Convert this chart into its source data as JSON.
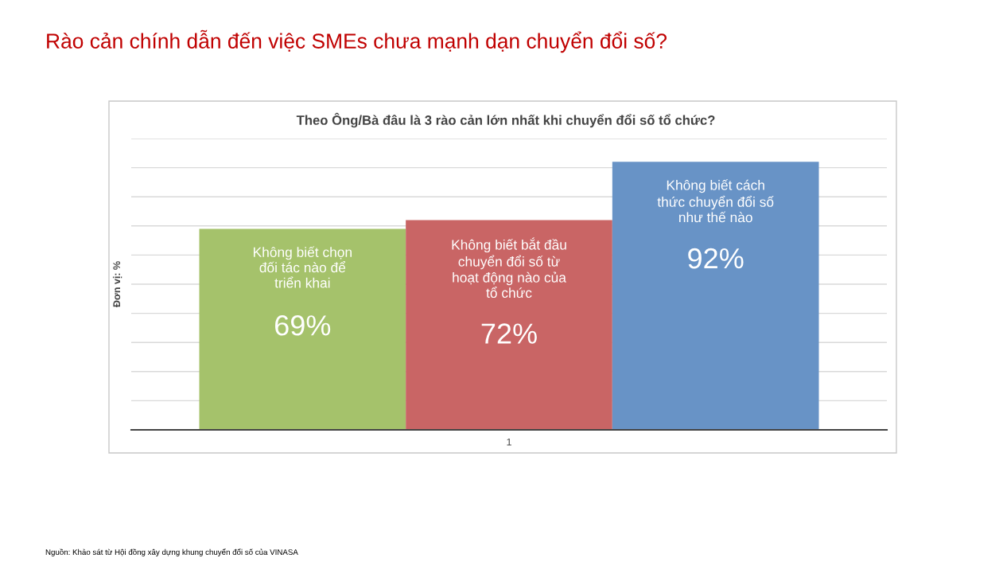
{
  "chart_data": {
    "type": "bar",
    "title": "Rào cản chính dẫn đến việc SMEs chưa mạnh dạn chuyển đổi số?",
    "subtitle": "Theo Ông/Bà đâu là 3 rào cản lớn nhất khi chuyển đổi số tổ chức?",
    "ylabel": "Đơn vị: %",
    "xlabel": "1",
    "categories": [
      null
    ],
    "series": [
      {
        "name": "Không biết chọn\nđối tác nào để\ntriển khai",
        "color": "#a5c26b",
        "values": [
          69
        ],
        "value_labels": [
          "69%"
        ]
      },
      {
        "name": "Không biết bắt đầu\nchuyển đổi số từ\nhoạt động nào của\ntổ chức",
        "color": "#c96565",
        "values": [
          72
        ],
        "value_labels": [
          "72%"
        ]
      },
      {
        "name": "Không biết cách\nthức chuyển đổi số\nnhư thế nào",
        "color": "#6893c6",
        "values": [
          92
        ],
        "value_labels": [
          "92%"
        ]
      }
    ],
    "ylim": [
      0,
      100
    ],
    "yticks": [
      {
        "value": 0,
        "label": null
      },
      {
        "value": 10,
        "label": null
      },
      {
        "value": 20,
        "label": null
      },
      {
        "value": 30,
        "label": null
      },
      {
        "value": 40,
        "label": null
      },
      {
        "value": 50,
        "label": null
      },
      {
        "value": 60,
        "label": null
      },
      {
        "value": 70,
        "label": null
      },
      {
        "value": 80,
        "label": null
      },
      {
        "value": 90,
        "label": null
      },
      {
        "value": 100,
        "label": null
      }
    ],
    "grid": "y",
    "tick_labels": "x",
    "legend": false,
    "annotations": [
      "Nguồn: Khảo sát từ Hội đồng xây dựng khung chuyển đổi số của VINASA"
    ]
  }
}
